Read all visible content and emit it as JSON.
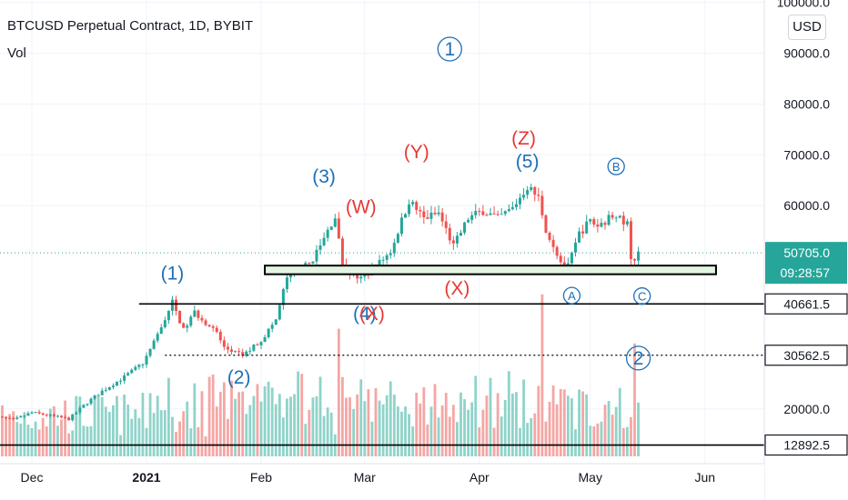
{
  "header": {
    "title": "BTCUSD Perpetual Contract, 1D, BYBIT",
    "indicator": "Vol",
    "unit_button": "USD"
  },
  "colors": {
    "up": "#26a69a",
    "down": "#ef5350",
    "vol_up": "#8fd3c9",
    "vol_down": "#f4a6a4",
    "wave_blue": "#1e6fb5",
    "wave_red": "#e53935",
    "zone_fill": "#e3f4e3",
    "price_badge": "#26a69a",
    "level_badge": "#131722"
  },
  "chart_data": {
    "type": "candlestick",
    "title": "BTCUSD Perpetual Contract, 1D, BYBIT",
    "x_ticks": [
      "Dec",
      "2021",
      "Feb",
      "Mar",
      "Apr",
      "May",
      "Jun"
    ],
    "x_tick_dates": [
      "2020-12-01",
      "2021-01-01",
      "2021-02-01",
      "2021-03-01",
      "2021-04-01",
      "2021-05-01",
      "2021-06-01"
    ],
    "y_ticks": [
      100000.0,
      90000.0,
      80000.0,
      70000.0,
      60000.0,
      20000.0
    ],
    "y_tick_labels": [
      "100000.0",
      "90000.0",
      "80000.0",
      "70000.0",
      "60000.0",
      "20000.0"
    ],
    "y_range": [
      10000,
      100000
    ],
    "current_price": {
      "value": 50705.0,
      "label": "50705.0",
      "countdown": "09:28:57"
    },
    "horizontal_levels": [
      {
        "value": 40661.5,
        "label": "40661.5",
        "style": "solid"
      },
      {
        "value": 30562.5,
        "label": "30562.5",
        "style": "dotted"
      },
      {
        "value": 12892.5,
        "label": "12892.5",
        "style": "solid"
      }
    ],
    "support_zone": {
      "from_date": "2021-02-02",
      "to_date": "2021-06-04",
      "low": 46500,
      "high": 48200
    },
    "close_path": [
      [
        "2020-11-20",
        18600
      ],
      [
        "2020-11-26",
        17800
      ],
      [
        "2020-12-01",
        19300
      ],
      [
        "2020-12-08",
        18400
      ],
      [
        "2020-12-11",
        18000
      ],
      [
        "2020-12-16",
        21300
      ],
      [
        "2020-12-20",
        23500
      ],
      [
        "2020-12-26",
        26300
      ],
      [
        "2020-12-31",
        29000
      ],
      [
        "2021-01-03",
        33000
      ],
      [
        "2021-01-08",
        41000
      ],
      [
        "2021-01-11",
        35500
      ],
      [
        "2021-01-14",
        39000
      ],
      [
        "2021-01-20",
        35000
      ],
      [
        "2021-01-22",
        32000
      ],
      [
        "2021-01-27",
        30500
      ],
      [
        "2021-02-01",
        33500
      ],
      [
        "2021-02-05",
        37500
      ],
      [
        "2021-02-08",
        46000
      ],
      [
        "2021-02-14",
        48500
      ],
      [
        "2021-02-17",
        52000
      ],
      [
        "2021-02-21",
        58000
      ],
      [
        "2021-02-23",
        48000
      ],
      [
        "2021-02-28",
        45500
      ],
      [
        "2021-03-04",
        48000
      ],
      [
        "2021-03-08",
        51000
      ],
      [
        "2021-03-13",
        61000
      ],
      [
        "2021-03-17",
        57500
      ],
      [
        "2021-03-21",
        58500
      ],
      [
        "2021-03-25",
        52000
      ],
      [
        "2021-03-29",
        57500
      ],
      [
        "2021-04-02",
        59000
      ],
      [
        "2021-04-06",
        57500
      ],
      [
        "2021-04-10",
        59500
      ],
      [
        "2021-04-14",
        63800
      ],
      [
        "2021-04-17",
        61500
      ],
      [
        "2021-04-19",
        55500
      ],
      [
        "2021-04-23",
        49000
      ],
      [
        "2021-04-25",
        48000
      ],
      [
        "2021-04-28",
        54500
      ],
      [
        "2021-05-01",
        57000
      ],
      [
        "2021-05-03",
        56000
      ],
      [
        "2021-05-08",
        58500
      ],
      [
        "2021-05-10",
        56000
      ],
      [
        "2021-05-11",
        57500
      ],
      [
        "2021-05-12",
        50000
      ],
      [
        "2021-05-13",
        49000
      ],
      [
        "2021-05-14",
        50700
      ]
    ],
    "volume_spikes": [
      {
        "date": "2021-02-22",
        "value": 0.26
      },
      {
        "date": "2021-04-18",
        "value": 0.33
      },
      {
        "date": "2021-05-13",
        "value": 0.23
      }
    ],
    "wave_labels": [
      {
        "text": "1",
        "date": "2021-03-24",
        "price": 90800,
        "color": "blue",
        "circled": true
      },
      {
        "text": "(1)",
        "date": "2021-01-08",
        "price": 45500,
        "color": "blue",
        "circled": false
      },
      {
        "text": "(2)",
        "date": "2021-01-26",
        "price": 25000,
        "color": "blue",
        "circled": false
      },
      {
        "text": "(3)",
        "date": "2021-02-18",
        "price": 64500,
        "color": "blue",
        "circled": false
      },
      {
        "text": "(4)",
        "date": "2021-03-01",
        "price": 37500,
        "color": "blue",
        "circled": false
      },
      {
        "text": "(5)",
        "date": "2021-04-14",
        "price": 67500,
        "color": "blue",
        "circled": false
      },
      {
        "text": "(W)",
        "date": "2021-02-28",
        "price": 58500,
        "color": "red",
        "circled": false
      },
      {
        "text": "(X)",
        "date": "2021-03-03",
        "price": 37500,
        "color": "red",
        "circled": false
      },
      {
        "text": "(Y)",
        "date": "2021-03-15",
        "price": 69300,
        "color": "red",
        "circled": false
      },
      {
        "text": "(X)",
        "date": "2021-03-26",
        "price": 42500,
        "color": "red",
        "circled": false
      },
      {
        "text": "(Z)",
        "date": "2021-04-13",
        "price": 72000,
        "color": "red",
        "circled": false
      },
      {
        "text": "B",
        "date": "2021-05-08",
        "price": 67700,
        "color": "blue",
        "circled": true
      },
      {
        "text": "A",
        "date": "2021-04-26",
        "price": 42300,
        "color": "blue",
        "circled": true
      },
      {
        "text": "C",
        "date": "2021-05-15",
        "price": 42200,
        "color": "blue",
        "circled": true
      },
      {
        "text": "2",
        "date": "2021-05-14",
        "price": 30000,
        "color": "blue",
        "circled": true
      }
    ]
  }
}
